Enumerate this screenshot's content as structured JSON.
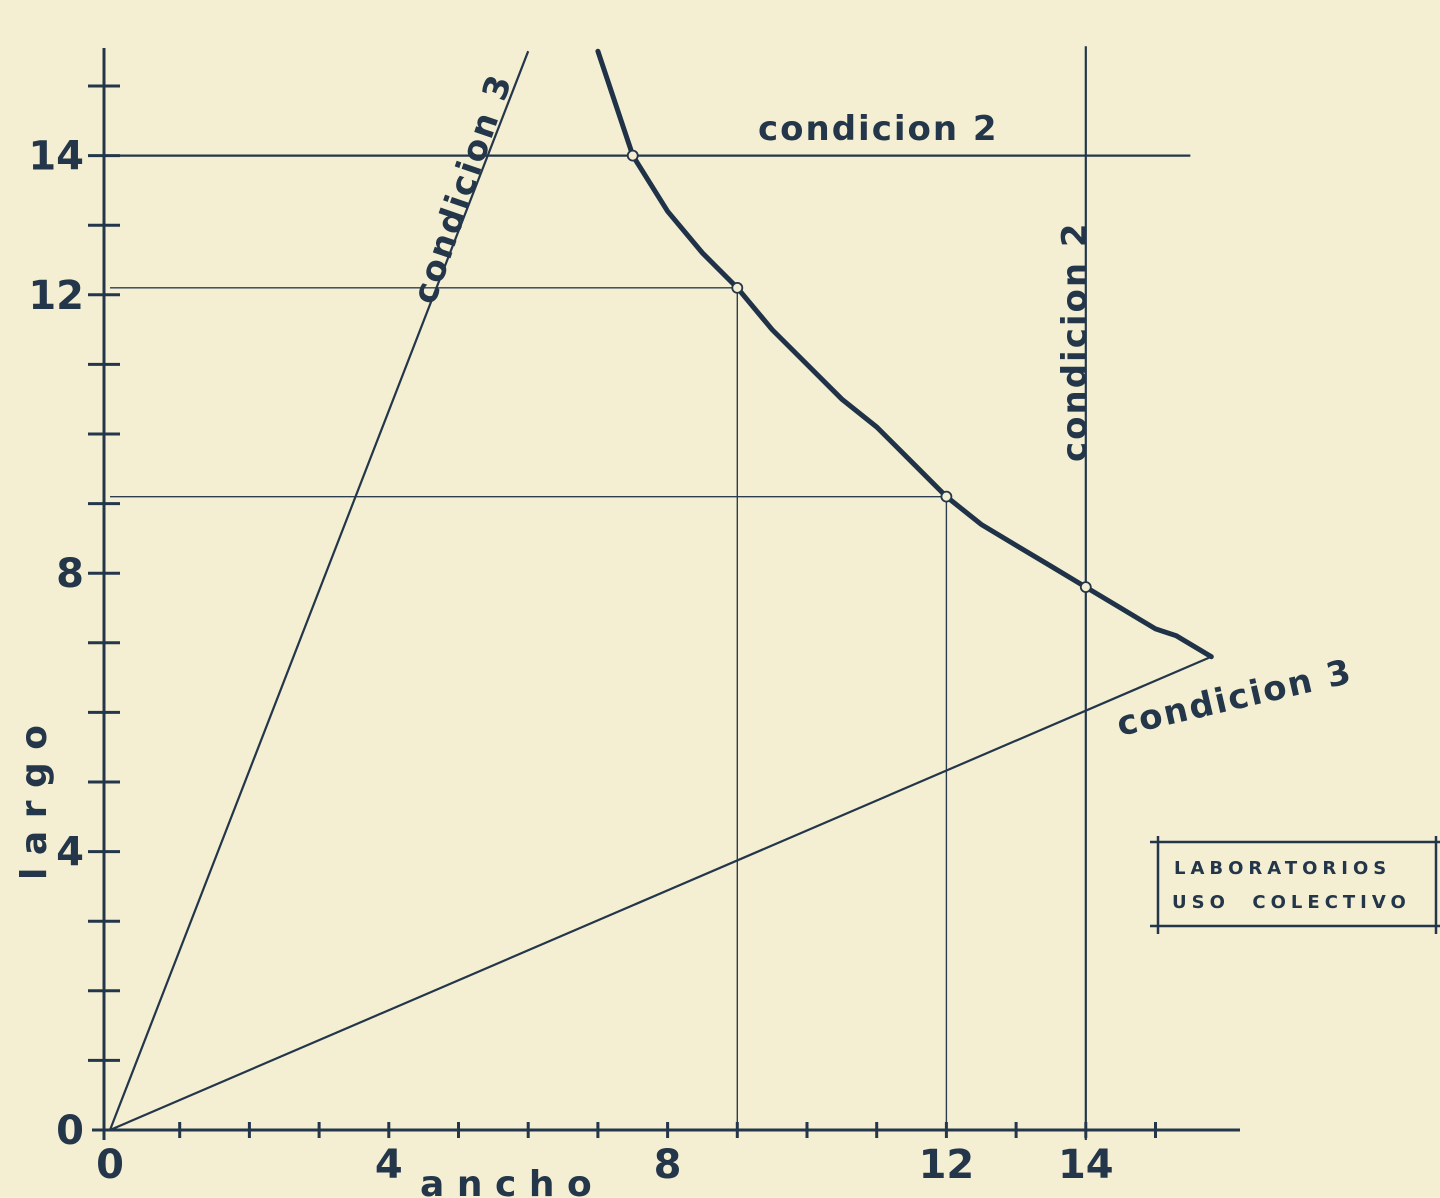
{
  "chart_data": {
    "type": "line",
    "xlabel": "a n c h o",
    "ylabel": "l a r g o",
    "xlim": [
      0,
      16
    ],
    "ylim": [
      0,
      15.5
    ],
    "x_ticks": [
      0,
      4,
      8,
      12,
      14
    ],
    "y_ticks": [
      0,
      4,
      8,
      12,
      14
    ],
    "x_minor_step": 1,
    "y_minor_step": 1,
    "grid": false,
    "series": [
      {
        "name": "",
        "style": "curve",
        "x": [
          7,
          7.5,
          8,
          8.5,
          9,
          9.5,
          10,
          10.5,
          11,
          11.5,
          12,
          12.5,
          13,
          13.5,
          14,
          14.5,
          15,
          15.3,
          15.8
        ],
        "y": [
          15.5,
          14,
          13.2,
          12.6,
          12.1,
          11.5,
          11,
          10.5,
          10.1,
          9.6,
          9.1,
          8.7,
          8.4,
          8.1,
          7.8,
          7.5,
          7.2,
          7.1,
          6.8
        ]
      },
      {
        "name": "condicion 3",
        "style": "line",
        "x": [
          0,
          6
        ],
        "y": [
          0,
          15.5
        ]
      },
      {
        "name": "condicion 3",
        "style": "line",
        "x": [
          0,
          15.8
        ],
        "y": [
          0,
          6.8
        ]
      },
      {
        "name": "condicion 2",
        "style": "hline",
        "y": 14,
        "x_range": [
          0,
          15.5
        ]
      },
      {
        "name": "condicion 2",
        "style": "vline",
        "x": 14,
        "y_range": [
          0,
          15.5
        ]
      }
    ],
    "points": [
      {
        "x": 7.5,
        "y": 14
      },
      {
        "x": 9,
        "y": 12.1
      },
      {
        "x": 12,
        "y": 9.1
      },
      {
        "x": 14,
        "y": 7.8
      }
    ],
    "guides": [
      {
        "from": [
          0,
          12.1
        ],
        "to": [
          9,
          12.1
        ]
      },
      {
        "from": [
          9,
          12.1
        ],
        "to": [
          9,
          0
        ]
      },
      {
        "from": [
          0,
          9.1
        ],
        "to": [
          12,
          9.1
        ]
      },
      {
        "from": [
          12,
          9.1
        ],
        "to": [
          12,
          0
        ]
      }
    ],
    "labels": {
      "cond3_steep": "condicion 3",
      "cond3_shallow": "condicion 3",
      "cond2_horizontal": "condicion 2",
      "cond2_vertical": "condicion 2"
    },
    "legend": [
      "LABORATORIOS",
      "USO  COLECTIVO"
    ],
    "legend_position": "right"
  }
}
